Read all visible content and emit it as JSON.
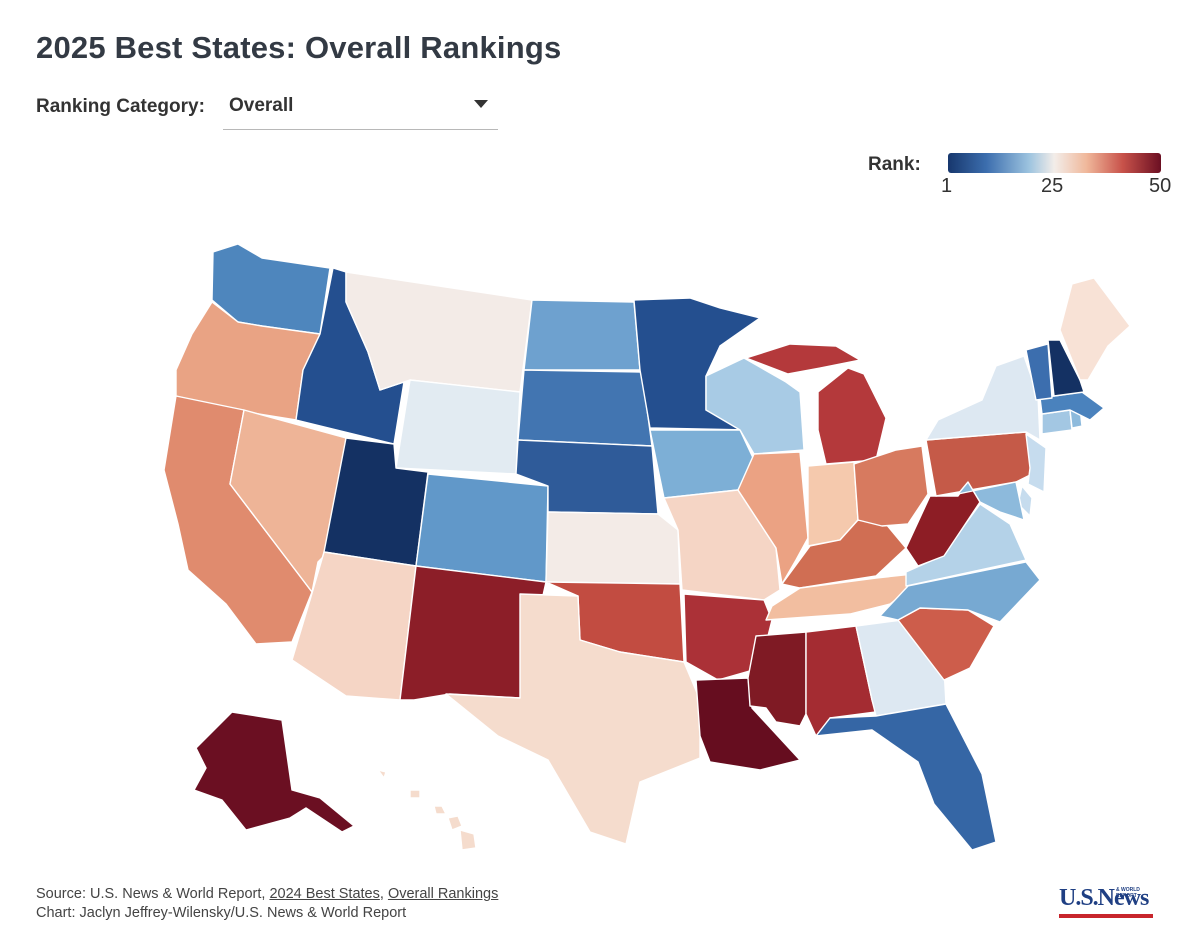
{
  "title": "2025 Best States: Overall Rankings",
  "category": {
    "label": "Ranking Category:",
    "value": "Overall"
  },
  "legend": {
    "title": "Rank:",
    "min": "1",
    "mid": "25",
    "max": "50",
    "colors": [
      "#17376d",
      "#3c6eae",
      "#9cc3df",
      "#f3ede9",
      "#f0b89b",
      "#c8524a",
      "#6b0f22"
    ]
  },
  "source": {
    "prefix": "Source: U.S. News & World Report,",
    "link1": "2024 Best States",
    "sep": ",",
    "link2": "Overall Rankings",
    "credit": "Chart: Jaclyn Jeffrey-Wilensky/U.S. News & World Report"
  },
  "logo": {
    "text": "U.S.News",
    "small": "& WORLD REPORT"
  },
  "states": [
    {
      "id": "WA",
      "color": "#4e86bd"
    },
    {
      "id": "OR",
      "color": "#e9a384"
    },
    {
      "id": "CA",
      "color": "#e08b6e"
    },
    {
      "id": "ID",
      "color": "#244f8f"
    },
    {
      "id": "NV",
      "color": "#eeb497"
    },
    {
      "id": "MT",
      "color": "#f3ebe7"
    },
    {
      "id": "WY",
      "color": "#e2ebf2"
    },
    {
      "id": "UT",
      "color": "#143163"
    },
    {
      "id": "AZ",
      "color": "#f5d5c5"
    },
    {
      "id": "CO",
      "color": "#6198c9"
    },
    {
      "id": "NM",
      "color": "#8c1e28"
    },
    {
      "id": "ND",
      "color": "#6ea1cf"
    },
    {
      "id": "SD",
      "color": "#4275b1"
    },
    {
      "id": "NE",
      "color": "#2f5b99"
    },
    {
      "id": "KS",
      "color": "#f3ebe7"
    },
    {
      "id": "OK",
      "color": "#c24c41"
    },
    {
      "id": "TX",
      "color": "#f5dccd"
    },
    {
      "id": "MN",
      "color": "#244f8f"
    },
    {
      "id": "IA",
      "color": "#7dafd6"
    },
    {
      "id": "MO",
      "color": "#f5d5c5"
    },
    {
      "id": "AR",
      "color": "#ab3137"
    },
    {
      "id": "LA",
      "color": "#660d1f"
    },
    {
      "id": "WI",
      "color": "#a8cbe5"
    },
    {
      "id": "IL",
      "color": "#eba283"
    },
    {
      "id": "MS",
      "color": "#7f1a24"
    },
    {
      "id": "MI",
      "color": "#b4393b"
    },
    {
      "id": "IN",
      "color": "#f5c9ad"
    },
    {
      "id": "KY",
      "color": "#d06e53"
    },
    {
      "id": "TN",
      "color": "#f2bea0"
    },
    {
      "id": "AL",
      "color": "#a42c32"
    },
    {
      "id": "OH",
      "color": "#d77a5f"
    },
    {
      "id": "GA",
      "color": "#dde8f2"
    },
    {
      "id": "FL",
      "color": "#3566a5"
    },
    {
      "id": "SC",
      "color": "#cd5d4b"
    },
    {
      "id": "NC",
      "color": "#77a9d2"
    },
    {
      "id": "VA",
      "color": "#b4d2e8"
    },
    {
      "id": "WV",
      "color": "#8d1d25"
    },
    {
      "id": "PA",
      "color": "#c55a48"
    },
    {
      "id": "NY",
      "color": "#dde8f2"
    },
    {
      "id": "VT",
      "color": "#3c6eae"
    },
    {
      "id": "NH",
      "color": "#143163"
    },
    {
      "id": "ME",
      "color": "#f8e2d6"
    },
    {
      "id": "MA",
      "color": "#4a82bd"
    },
    {
      "id": "CT",
      "color": "#a3c7e3"
    },
    {
      "id": "RI",
      "color": "#8dbadc"
    },
    {
      "id": "NJ",
      "color": "#c6dcee"
    },
    {
      "id": "DE",
      "color": "#c6dcee"
    },
    {
      "id": "MD",
      "color": "#8dbadc"
    },
    {
      "id": "AK",
      "color": "#6b0f22"
    },
    {
      "id": "HI",
      "color": "#f5dccd"
    }
  ]
}
